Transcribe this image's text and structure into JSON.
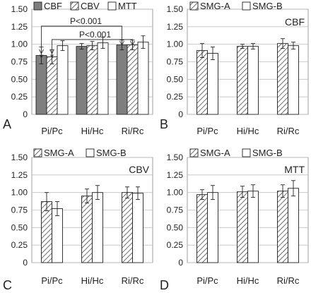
{
  "chart_data": [
    {
      "type": "bar",
      "panel_letter": "A",
      "categories": [
        "Pi/Pc",
        "Hi/Hc",
        "Ri/Rc"
      ],
      "ylim": [
        0,
        1.5
      ],
      "yticks": [
        "0",
        "0.25",
        "0.50",
        "0.75",
        "1.00",
        "1.25",
        "1.50"
      ],
      "grid": true,
      "legend_position": "top",
      "title": "",
      "series": [
        {
          "name": "CBF",
          "pattern": "solid-gray",
          "values": [
            0.84,
            0.97,
            0.99
          ],
          "errors": [
            0.12,
            0.04,
            0.07
          ]
        },
        {
          "name": "CBV",
          "pattern": "hatched",
          "values": [
            0.82,
            0.98,
            0.99
          ],
          "errors": [
            0.1,
            0.06,
            0.07
          ]
        },
        {
          "name": "MTT",
          "pattern": "white",
          "values": [
            0.98,
            1.02,
            1.03
          ],
          "errors": [
            0.07,
            0.08,
            0.09
          ]
        }
      ],
      "annotations": {
        "brackets": [
          "P<0.001",
          "P<0.001"
        ],
        "markers": [
          "*",
          "*"
        ]
      }
    },
    {
      "type": "bar",
      "panel_letter": "B",
      "title": "CBF",
      "categories": [
        "Pi/Pc",
        "Hi/Hc",
        "Ri/Rc"
      ],
      "ylim": [
        0,
        1.5
      ],
      "yticks": [
        "0",
        "0.25",
        "0.50",
        "0.75",
        "1.00",
        "1.25",
        "1.50"
      ],
      "grid": true,
      "legend_position": "top",
      "series": [
        {
          "name": "SMG-A",
          "pattern": "hatched",
          "values": [
            0.91,
            0.97,
            1.01
          ],
          "errors": [
            0.1,
            0.03,
            0.07
          ]
        },
        {
          "name": "SMG-B",
          "pattern": "white",
          "values": [
            0.87,
            0.97,
            0.98
          ],
          "errors": [
            0.09,
            0.04,
            0.05
          ]
        }
      ]
    },
    {
      "type": "bar",
      "panel_letter": "C",
      "title": "CBV",
      "categories": [
        "Pi/Pc",
        "Hi/Hc",
        "Ri/Rc"
      ],
      "ylim": [
        0,
        1.5
      ],
      "yticks": [
        "0",
        "0.25",
        "0.50",
        "0.75",
        "1.00",
        "1.25",
        "1.50"
      ],
      "grid": true,
      "legend_position": "top",
      "series": [
        {
          "name": "SMG-A",
          "pattern": "hatched",
          "values": [
            0.87,
            0.95,
            1.0
          ],
          "errors": [
            0.13,
            0.1,
            0.08
          ]
        },
        {
          "name": "SMG-B",
          "pattern": "white",
          "values": [
            0.77,
            1.0,
            0.99
          ],
          "errors": [
            0.1,
            0.1,
            0.09
          ]
        }
      ]
    },
    {
      "type": "bar",
      "panel_letter": "D",
      "title": "MTT",
      "categories": [
        "Pi/Pc",
        "Hi/Hc",
        "Ri/Rc"
      ],
      "ylim": [
        0,
        1.5
      ],
      "yticks": [
        "0",
        "0.25",
        "0.50",
        "0.75",
        "1.00",
        "1.25",
        "1.50"
      ],
      "grid": true,
      "legend_position": "top",
      "series": [
        {
          "name": "SMG-A",
          "pattern": "hatched",
          "values": [
            0.97,
            1.01,
            1.02
          ],
          "errors": [
            0.07,
            0.08,
            0.09
          ]
        },
        {
          "name": "SMG-B",
          "pattern": "white",
          "values": [
            1.0,
            1.02,
            1.06
          ],
          "errors": [
            0.1,
            0.09,
            0.11
          ]
        }
      ]
    }
  ],
  "colors": {
    "solid_bar": "#7f7f7f",
    "bar_edge": "#222222",
    "grid": "#bfbfbf",
    "text": "#222222"
  }
}
